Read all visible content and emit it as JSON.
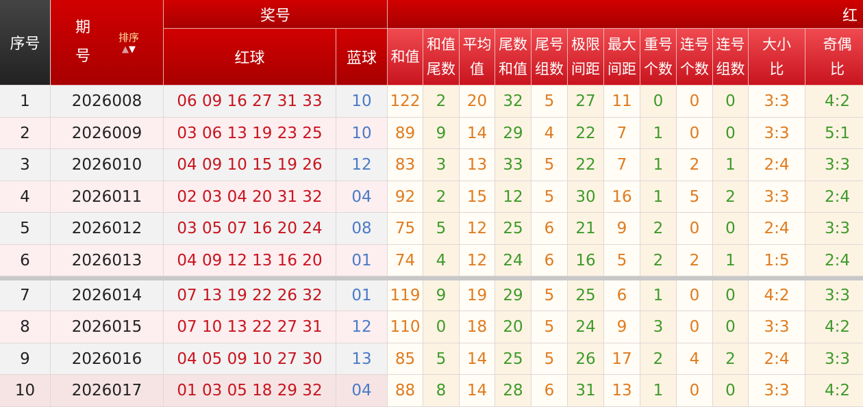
{
  "header": {
    "seq": "序号",
    "issue": "期号",
    "sort": "排序",
    "prize": "奖号",
    "red_ball": "红球",
    "blue_ball": "蓝球",
    "red_analysis": "红",
    "cols": [
      "和值",
      "和值\n尾数",
      "平均\n值",
      "尾数\n和值",
      "尾号\n组数",
      "极限\n间距",
      "最大\n间距",
      "重号\n个数",
      "连号\n个数",
      "连号\n组数",
      "大小\n比",
      "奇偶\n比"
    ]
  },
  "colors": {
    "header_red": "#c00000",
    "orange": "#e07a1f",
    "green": "#3e9a2a",
    "red_ball": "#c8141e",
    "blue_ball": "#4a7ac8"
  },
  "rows": [
    {
      "seq": "1",
      "issue": "2026008",
      "red": "06 09 16 27 31 33",
      "blue": "10",
      "v": [
        "122",
        "2",
        "20",
        "32",
        "5",
        "27",
        "11",
        "0",
        "0",
        "0",
        "3:3",
        "4:2"
      ]
    },
    {
      "seq": "2",
      "issue": "2026009",
      "red": "03 06 13 19 23 25",
      "blue": "10",
      "v": [
        "89",
        "9",
        "14",
        "29",
        "4",
        "22",
        "7",
        "1",
        "0",
        "0",
        "3:3",
        "5:1"
      ]
    },
    {
      "seq": "3",
      "issue": "2026010",
      "red": "04 09 10 15 19 26",
      "blue": "12",
      "v": [
        "83",
        "3",
        "13",
        "33",
        "5",
        "22",
        "7",
        "1",
        "2",
        "1",
        "2:4",
        "3:3"
      ]
    },
    {
      "seq": "4",
      "issue": "2026011",
      "red": "02 03 04 20 31 32",
      "blue": "04",
      "v": [
        "92",
        "2",
        "15",
        "12",
        "5",
        "30",
        "16",
        "1",
        "5",
        "2",
        "3:3",
        "2:4"
      ]
    },
    {
      "seq": "5",
      "issue": "2026012",
      "red": "03 05 07 16 20 24",
      "blue": "08",
      "v": [
        "75",
        "5",
        "12",
        "25",
        "6",
        "21",
        "9",
        "2",
        "0",
        "0",
        "2:4",
        "3:3"
      ]
    },
    {
      "seq": "6",
      "issue": "2026013",
      "red": "04 09 12 13 16 20",
      "blue": "01",
      "v": [
        "74",
        "4",
        "12",
        "24",
        "6",
        "16",
        "5",
        "2",
        "2",
        "1",
        "1:5",
        "2:4"
      ]
    },
    {
      "seq": "7",
      "issue": "2026014",
      "red": "07 13 19 22 26 32",
      "blue": "01",
      "v": [
        "119",
        "9",
        "19",
        "29",
        "5",
        "25",
        "6",
        "1",
        "0",
        "0",
        "4:2",
        "3:3"
      ]
    },
    {
      "seq": "8",
      "issue": "2026015",
      "red": "07 10 13 22 27 31",
      "blue": "12",
      "v": [
        "110",
        "0",
        "18",
        "20",
        "5",
        "24",
        "9",
        "3",
        "0",
        "0",
        "3:3",
        "4:2"
      ]
    },
    {
      "seq": "9",
      "issue": "2026016",
      "red": "04 05 09 10 27 30",
      "blue": "13",
      "v": [
        "85",
        "5",
        "14",
        "25",
        "5",
        "26",
        "17",
        "2",
        "4",
        "2",
        "2:4",
        "3:3"
      ]
    },
    {
      "seq": "10",
      "issue": "2026017",
      "red": "01 03 05 18 29 32",
      "blue": "04",
      "v": [
        "88",
        "8",
        "14",
        "28",
        "6",
        "31",
        "13",
        "1",
        "0",
        "0",
        "3:3",
        "4:2"
      ]
    }
  ]
}
